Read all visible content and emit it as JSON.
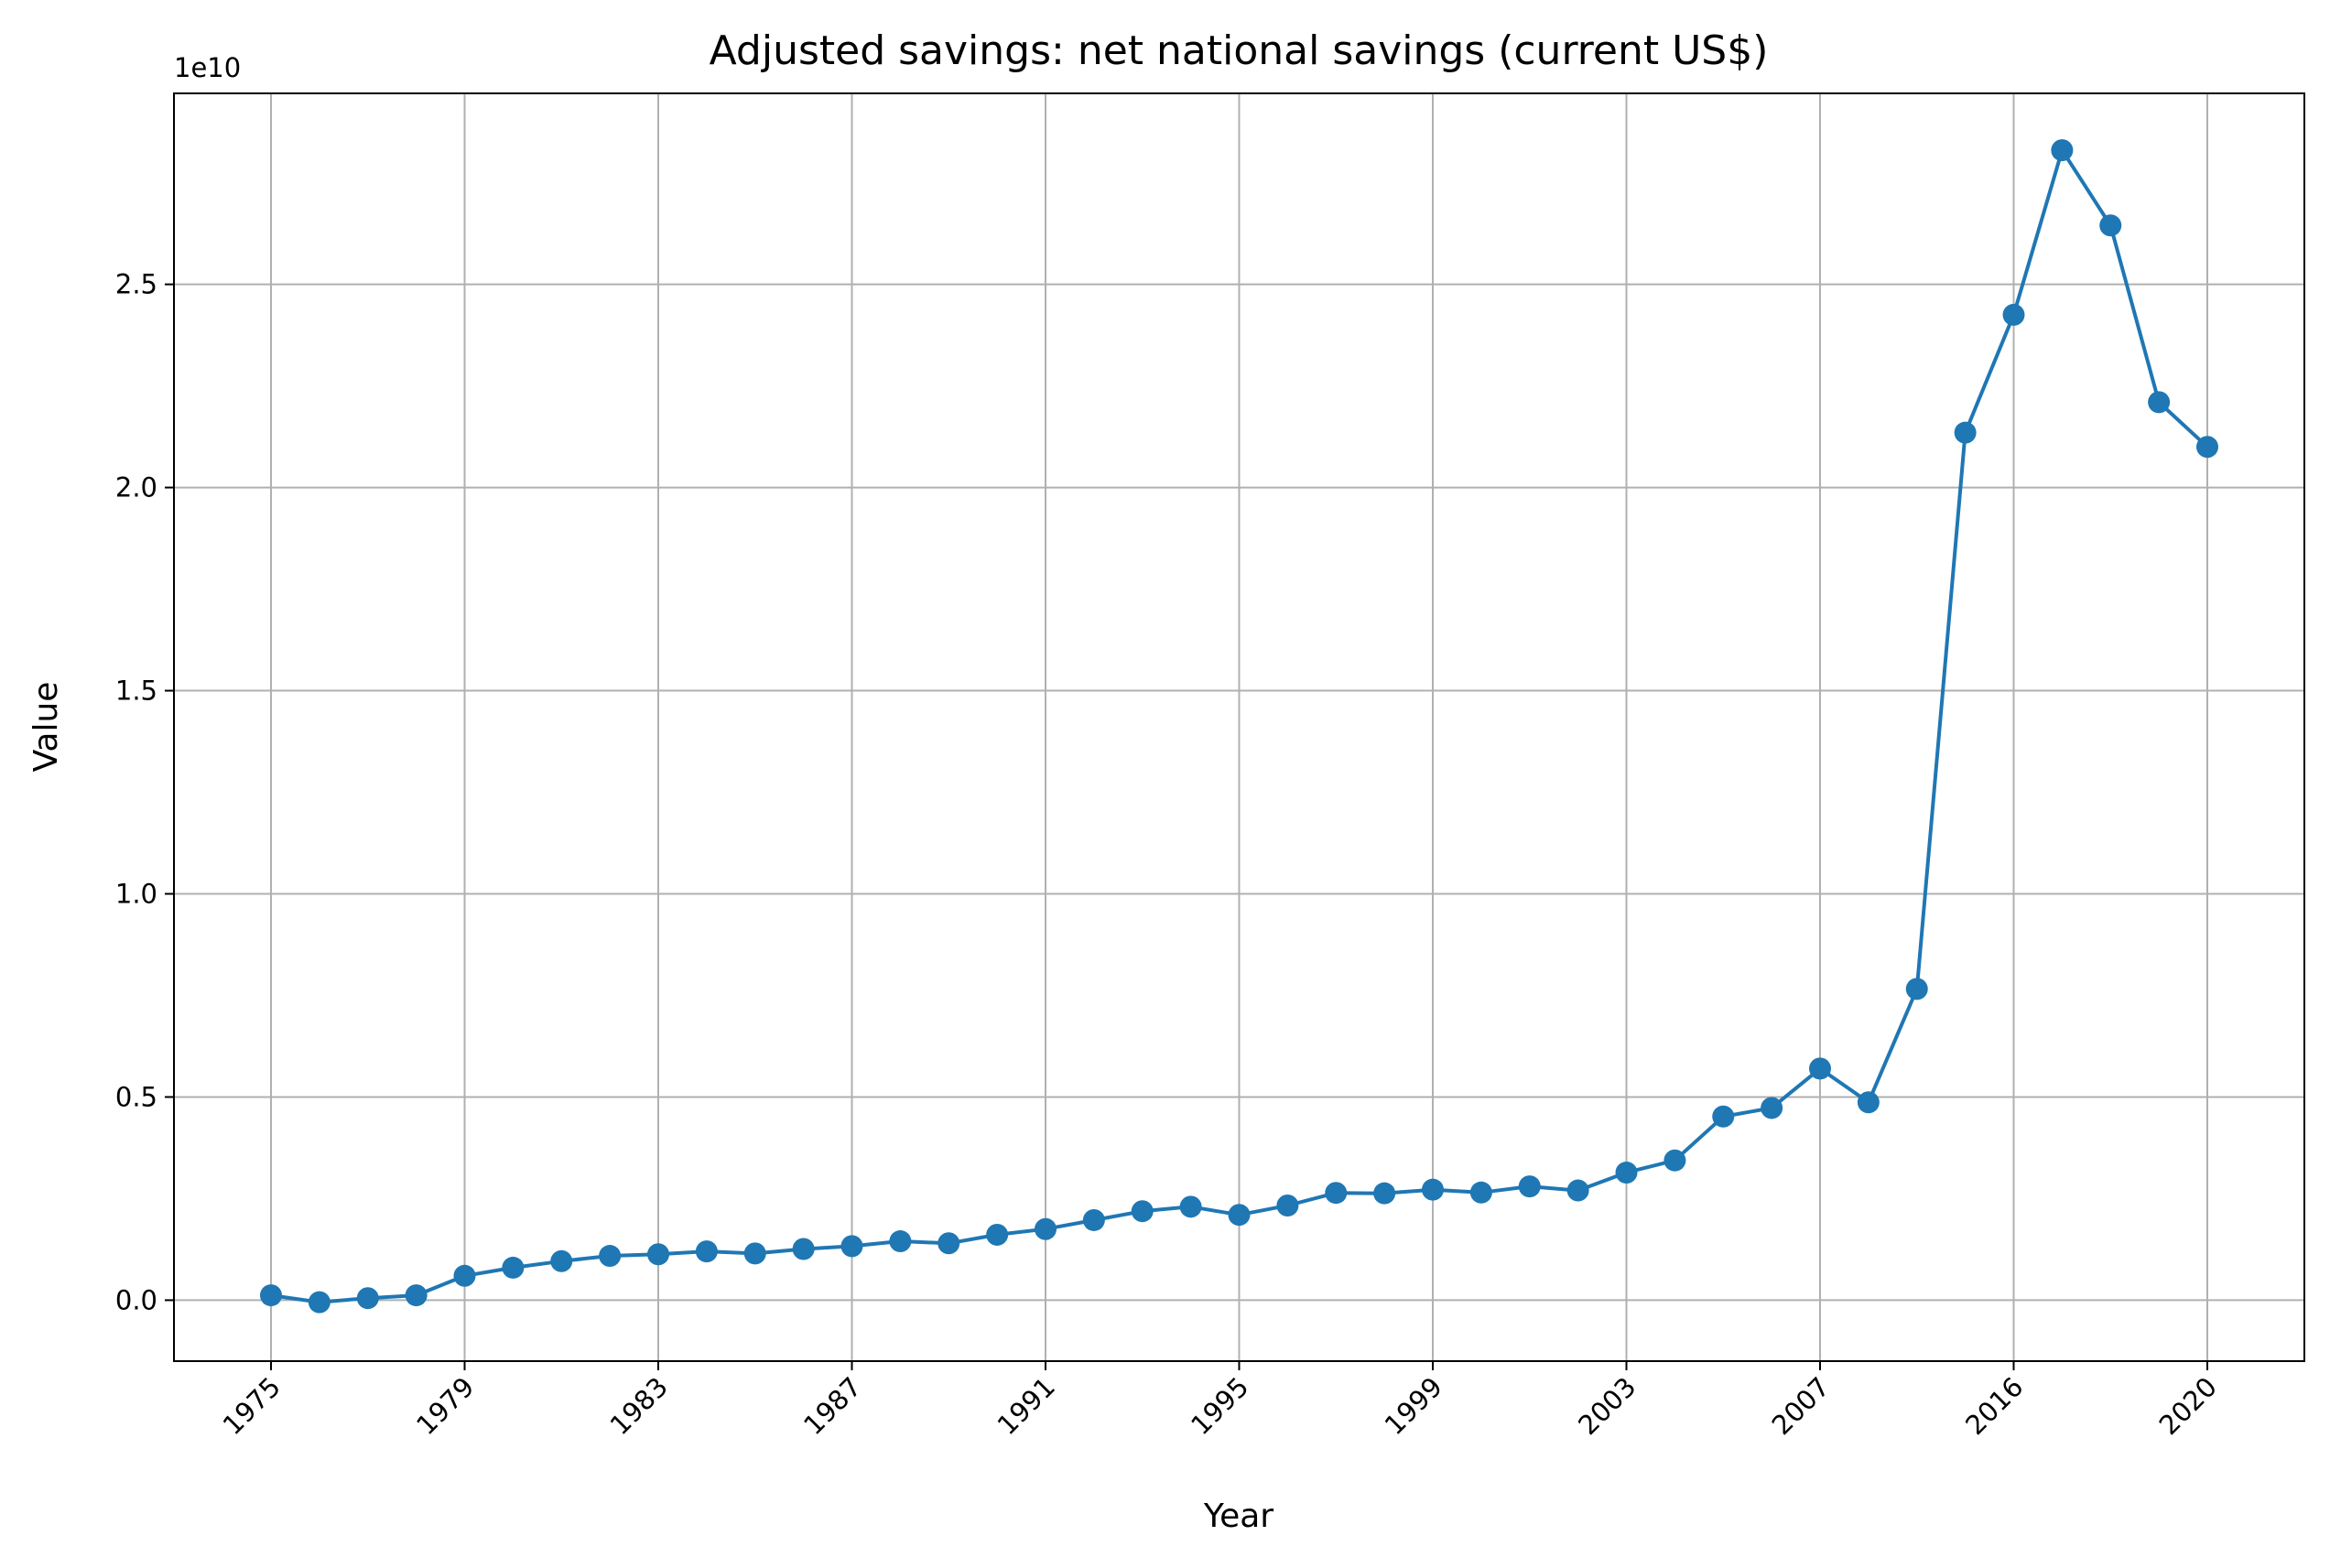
{
  "chart_data": {
    "type": "line",
    "title": "Adjusted savings: net national savings (current US$)",
    "xlabel": "Year",
    "ylabel": "Value",
    "y_offset_label": "1e10",
    "y_scale": 10000000000,
    "ylim": [
      -0.15,
      2.97
    ],
    "y_ticks": [
      0.0,
      0.5,
      1.0,
      1.5,
      2.0,
      2.5
    ],
    "y_tick_labels": [
      "0.0",
      "0.5",
      "1.0",
      "1.5",
      "2.0",
      "2.5"
    ],
    "x_tick_labels": [
      "1975",
      "1979",
      "1983",
      "1987",
      "1991",
      "1995",
      "1999",
      "2003",
      "2007",
      "2016",
      "2020"
    ],
    "x_tick_every": 4,
    "grid": true,
    "line_color": "#1f77b4",
    "marker": "circle",
    "series": [
      {
        "categories": [
          "1975",
          "1976",
          "1977",
          "1978",
          "1979",
          "1980",
          "1981",
          "1982",
          "1983",
          "1984",
          "1985",
          "1986",
          "1987",
          "1988",
          "1989",
          "1990",
          "1991",
          "1992",
          "1993",
          "1994",
          "1995",
          "1996",
          "1997",
          "1998",
          "1999",
          "2000",
          "2001",
          "2002",
          "2003",
          "2004",
          "2005",
          "2006",
          "2007",
          "2008",
          "2009",
          "2014",
          "2016",
          "2017",
          "2018",
          "2019",
          "2020"
        ],
        "values": [
          0.012,
          -0.005,
          0.005,
          0.012,
          0.06,
          0.08,
          0.096,
          0.109,
          0.113,
          0.12,
          0.115,
          0.126,
          0.133,
          0.145,
          0.14,
          0.161,
          0.175,
          0.197,
          0.219,
          0.23,
          0.21,
          0.233,
          0.264,
          0.263,
          0.272,
          0.265,
          0.28,
          0.27,
          0.314,
          0.344,
          0.452,
          0.473,
          0.57,
          0.487,
          0.766,
          2.135,
          2.425,
          2.83,
          2.645,
          2.21,
          2.1
        ]
      }
    ]
  }
}
